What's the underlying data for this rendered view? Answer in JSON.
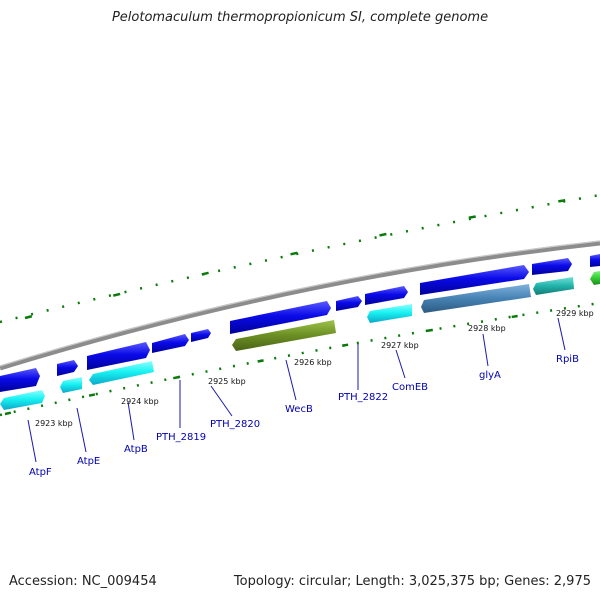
{
  "title": "Pelotomaculum thermopropionicum SI, complete genome",
  "footer": {
    "accession": "Accession: NC_009454",
    "stats": "Topology: circular; Length: 3,025,375 bp; Genes: 2,975"
  },
  "colors": {
    "backbone": "#8c8c8c",
    "gene_blue": "#0a0ae8",
    "gene_cyan": "#19f2f2",
    "gene_olive": "#6b8e23",
    "gene_steel": "#4682b4",
    "gene_teal": "#20b2aa",
    "gene_green": "#32cd32",
    "tick": "#0a7a0a",
    "label": "#0000b0"
  },
  "kbp_labels": [
    "2923 kbp",
    "2924 kbp",
    "2925 kbp",
    "2926 kbp",
    "2927 kbp",
    "2928 kbp",
    "2929 kbp"
  ],
  "gene_labels": [
    "AtpF",
    "AtpE",
    "AtpB",
    "PTH_2819",
    "PTH_2820",
    "WecB",
    "PTH_2822",
    "ComEB",
    "glyA",
    "RpiB"
  ]
}
